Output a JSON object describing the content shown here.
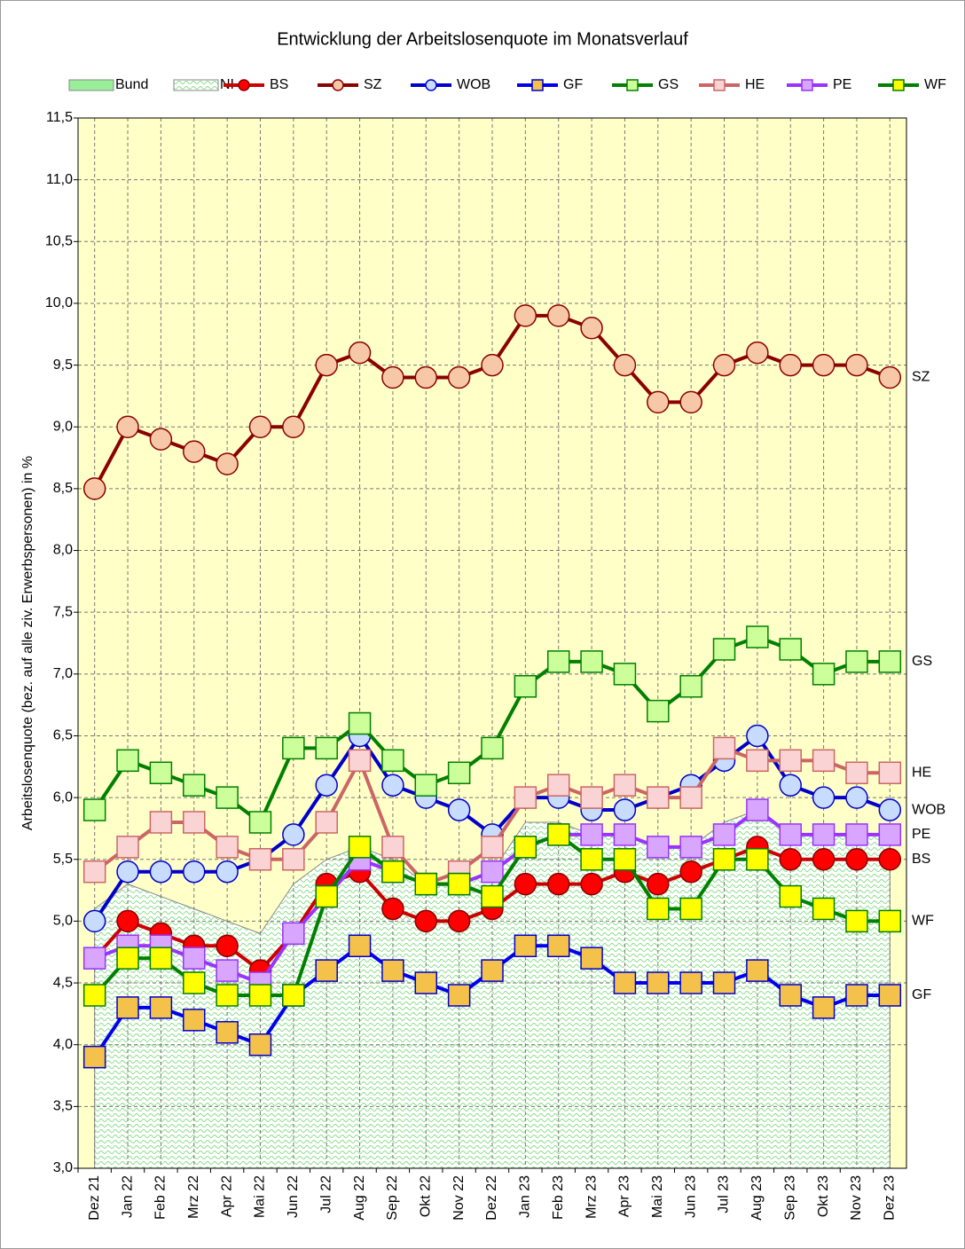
{
  "chart_data": {
    "type": "line",
    "title": "Entwicklung der Arbeitslosenquote im Monatsverlauf",
    "y_label": "Arbeitslosenquote (bez. auf alle ziv. Erwerbspersonen) in %",
    "categories": [
      "Dez 21",
      "Jan 22",
      "Feb 22",
      "Mrz 22",
      "Apr 22",
      "Mai 22",
      "Jun 22",
      "Jul 22",
      "Aug 22",
      "Sep 22",
      "Okt 22",
      "Nov 22",
      "Dez 22",
      "Jan 23",
      "Feb 23",
      "Mrz 23",
      "Apr 23",
      "Mai 23",
      "Jun 23",
      "Jul 23",
      "Aug 23",
      "Sep 23",
      "Okt 23",
      "Nov 23",
      "Dez 23"
    ],
    "ylim": [
      3.0,
      11.5
    ],
    "yticks": [
      {
        "value": 3.0,
        "label": "3,0"
      },
      {
        "value": 3.5,
        "label": "3,5"
      },
      {
        "value": 4.0,
        "label": "4,0"
      },
      {
        "value": 4.5,
        "label": "4,5"
      },
      {
        "value": 5.0,
        "label": "5,0"
      },
      {
        "value": 5.5,
        "label": "5,5"
      },
      {
        "value": 6.0,
        "label": "6,0"
      },
      {
        "value": 6.5,
        "label": "6,5"
      },
      {
        "value": 7.0,
        "label": "7,0"
      },
      {
        "value": 7.5,
        "label": "7,5"
      },
      {
        "value": 8.0,
        "label": "8,0"
      },
      {
        "value": 8.5,
        "label": "8,5"
      },
      {
        "value": 9.0,
        "label": "9,0"
      },
      {
        "value": 9.5,
        "label": "9,5"
      },
      {
        "value": 10.0,
        "label": "10,0"
      },
      {
        "value": 10.5,
        "label": "10,5"
      },
      {
        "value": 11.0,
        "label": "11,0"
      },
      {
        "value": 11.5,
        "label": "11,5"
      }
    ],
    "grid": true,
    "background": "#ffffc8",
    "series": [
      {
        "name": "Bund",
        "kind": "area",
        "color": "#99ee99",
        "values": [
          5.1,
          5.3,
          5.2,
          5.1,
          5.0,
          4.9,
          5.2,
          5.4,
          5.5,
          5.4,
          5.3,
          5.3,
          5.4,
          5.7,
          5.8,
          5.7,
          5.6,
          5.5,
          5.5,
          5.7,
          5.8,
          5.7,
          5.7,
          5.7,
          5.7
        ]
      },
      {
        "name": "NI",
        "kind": "hatched-area",
        "color": "#88dd88",
        "values": [
          5.1,
          5.3,
          5.2,
          5.1,
          5.0,
          4.9,
          5.3,
          5.5,
          5.6,
          5.5,
          5.3,
          5.3,
          5.4,
          5.8,
          5.8,
          5.7,
          5.7,
          5.6,
          5.6,
          5.8,
          5.9,
          5.7,
          5.7,
          5.7,
          5.7
        ]
      },
      {
        "name": "BS",
        "kind": "line",
        "marker": "circle",
        "color": "#cc0000",
        "marker_fill": "#ff0000",
        "marker_edge": "#880000",
        "values": [
          4.7,
          5.0,
          4.9,
          4.8,
          4.8,
          4.6,
          4.9,
          5.3,
          5.4,
          5.1,
          5.0,
          5.0,
          5.1,
          5.3,
          5.3,
          5.3,
          5.4,
          5.3,
          5.4,
          5.5,
          5.6,
          5.5,
          5.5,
          5.5,
          5.5
        ]
      },
      {
        "name": "SZ",
        "kind": "line",
        "marker": "circle",
        "color": "#8b0000",
        "marker_fill": "#f7c8a8",
        "marker_edge": "#8b0000",
        "values": [
          8.5,
          9.0,
          8.9,
          8.8,
          8.7,
          9.0,
          9.0,
          9.5,
          9.6,
          9.4,
          9.4,
          9.4,
          9.5,
          9.9,
          9.9,
          9.8,
          9.5,
          9.2,
          9.2,
          9.5,
          9.6,
          9.5,
          9.5,
          9.5,
          9.4
        ]
      },
      {
        "name": "WOB",
        "kind": "line",
        "marker": "circle",
        "color": "#0000cc",
        "marker_fill": "#c8dcff",
        "marker_edge": "#0000cc",
        "values": [
          5.0,
          5.4,
          5.4,
          5.4,
          5.4,
          5.5,
          5.7,
          6.1,
          6.5,
          6.1,
          6.0,
          5.9,
          5.7,
          6.0,
          6.0,
          5.9,
          5.9,
          6.0,
          6.1,
          6.3,
          6.5,
          6.1,
          6.0,
          6.0,
          5.9
        ]
      },
      {
        "name": "GF",
        "kind": "line",
        "marker": "square",
        "color": "#0000ee",
        "marker_fill": "#f4c24a",
        "marker_edge": "#0000cc",
        "values": [
          3.9,
          4.3,
          4.3,
          4.2,
          4.1,
          4.0,
          4.4,
          4.6,
          4.8,
          4.6,
          4.5,
          4.4,
          4.6,
          4.8,
          4.8,
          4.7,
          4.5,
          4.5,
          4.5,
          4.5,
          4.6,
          4.4,
          4.3,
          4.4,
          4.4
        ]
      },
      {
        "name": "GS",
        "kind": "line",
        "marker": "square",
        "color": "#008000",
        "marker_fill": "#ccff99",
        "marker_edge": "#008000",
        "values": [
          5.9,
          6.3,
          6.2,
          6.1,
          6.0,
          5.8,
          6.4,
          6.4,
          6.6,
          6.3,
          6.1,
          6.2,
          6.4,
          6.9,
          7.1,
          7.1,
          7.0,
          6.7,
          6.9,
          7.2,
          7.3,
          7.2,
          7.0,
          7.1,
          7.1
        ]
      },
      {
        "name": "HE",
        "kind": "line",
        "marker": "square",
        "color": "#cc6666",
        "marker_fill": "#fad4d4",
        "marker_edge": "#cc6666",
        "values": [
          5.4,
          5.6,
          5.8,
          5.8,
          5.6,
          5.5,
          5.5,
          5.8,
          6.3,
          5.6,
          5.3,
          5.4,
          5.6,
          6.0,
          6.1,
          6.0,
          6.1,
          6.0,
          6.0,
          6.4,
          6.3,
          6.3,
          6.3,
          6.2,
          6.2
        ]
      },
      {
        "name": "PE",
        "kind": "line",
        "marker": "square",
        "color": "#9933ff",
        "marker_fill": "#d9a6ff",
        "marker_edge": "#9933ff",
        "values": [
          4.7,
          4.8,
          4.8,
          4.7,
          4.6,
          4.5,
          4.9,
          5.2,
          5.5,
          5.4,
          5.3,
          5.3,
          5.4,
          5.6,
          5.7,
          5.7,
          5.7,
          5.6,
          5.6,
          5.7,
          5.9,
          5.7,
          5.7,
          5.7,
          5.7
        ]
      },
      {
        "name": "WF",
        "kind": "line",
        "marker": "square",
        "color": "#008000",
        "marker_fill": "#ffff00",
        "marker_edge": "#008000",
        "values": [
          4.4,
          4.7,
          4.7,
          4.5,
          4.4,
          4.4,
          4.4,
          5.2,
          5.6,
          5.4,
          5.3,
          5.3,
          5.2,
          5.6,
          5.7,
          5.5,
          5.5,
          5.1,
          5.1,
          5.5,
          5.5,
          5.2,
          5.1,
          5.0,
          5.0
        ]
      }
    ]
  }
}
